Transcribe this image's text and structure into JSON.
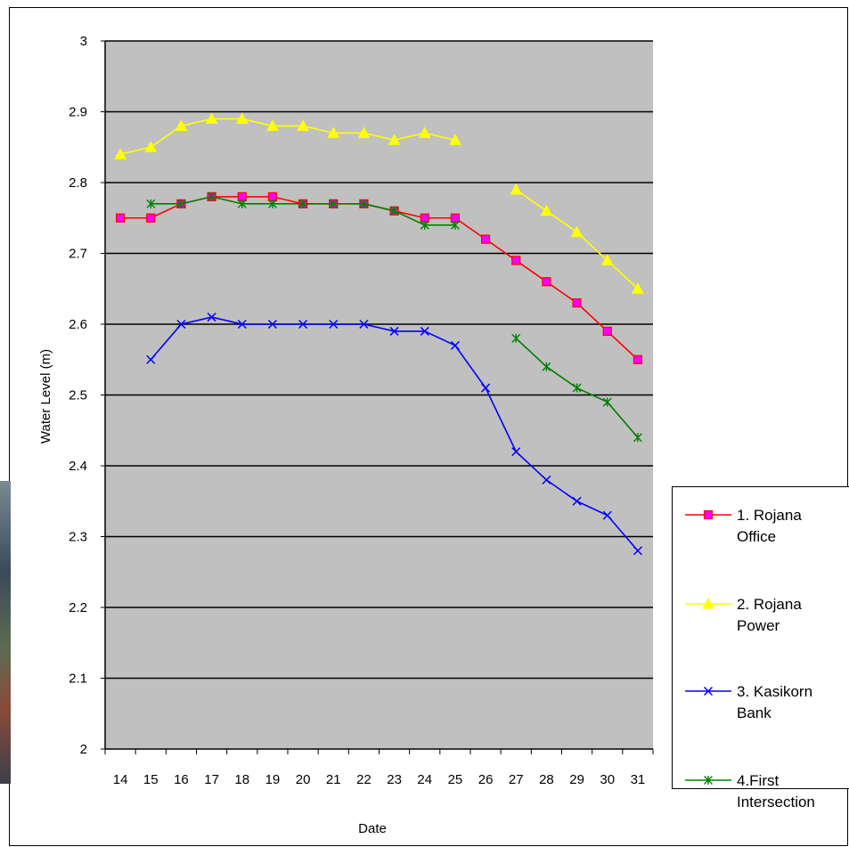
{
  "chart_data": {
    "type": "line",
    "title": "",
    "xlabel": "Date",
    "ylabel": "Water Level (m)",
    "categories": [
      "14",
      "15",
      "16",
      "17",
      "18",
      "19",
      "20",
      "21",
      "22",
      "23",
      "24",
      "25",
      "26",
      "27",
      "28",
      "29",
      "30",
      "31"
    ],
    "ylim": [
      2,
      3
    ],
    "yticks": [
      "2",
      "2.1",
      "2.2",
      "2.3",
      "2.4",
      "2.5",
      "2.6",
      "2.7",
      "2.8",
      "2.9",
      "3"
    ],
    "grid": true,
    "legend_position": "right",
    "plot_background": "#C0C0C0",
    "series": [
      {
        "name": "1. Rojana Office",
        "color": "#FF0000",
        "marker": "square",
        "marker_fill": "#FF00FF",
        "values": [
          2.75,
          2.75,
          2.77,
          2.78,
          2.78,
          2.78,
          2.77,
          2.77,
          2.77,
          2.76,
          2.75,
          2.75,
          2.72,
          2.69,
          2.66,
          2.63,
          2.59,
          2.55
        ]
      },
      {
        "name": "2. Rojana Power",
        "color": "#FFFF00",
        "marker": "triangle",
        "marker_fill": "#FFFF00",
        "values": [
          2.84,
          2.85,
          2.88,
          2.89,
          2.89,
          2.88,
          2.88,
          2.87,
          2.87,
          2.86,
          2.87,
          2.86,
          null,
          2.79,
          2.76,
          2.73,
          2.69,
          2.65
        ]
      },
      {
        "name": "3. Kasikorn Bank",
        "color": "#0000FF",
        "marker": "x",
        "marker_fill": "#0000FF",
        "values": [
          null,
          2.55,
          2.6,
          2.61,
          2.6,
          2.6,
          2.6,
          2.6,
          2.6,
          2.59,
          2.59,
          2.57,
          2.51,
          2.42,
          2.38,
          2.35,
          2.33,
          2.28
        ]
      },
      {
        "name": "4.First Intersection",
        "color": "#008000",
        "marker": "star",
        "marker_fill": "#008000",
        "values": [
          null,
          2.77,
          2.77,
          2.78,
          2.77,
          2.77,
          2.77,
          2.77,
          2.77,
          2.76,
          2.74,
          2.74,
          null,
          2.58,
          2.54,
          2.51,
          2.49,
          2.44
        ]
      }
    ]
  },
  "legend": {
    "items": [
      {
        "line1": "1. Rojana",
        "line2": "Office"
      },
      {
        "line1": "2. Rojana",
        "line2": "Power"
      },
      {
        "line1": "3. Kasikorn",
        "line2": "Bank"
      },
      {
        "line1": "4.First",
        "line2": "Intersection"
      }
    ]
  }
}
